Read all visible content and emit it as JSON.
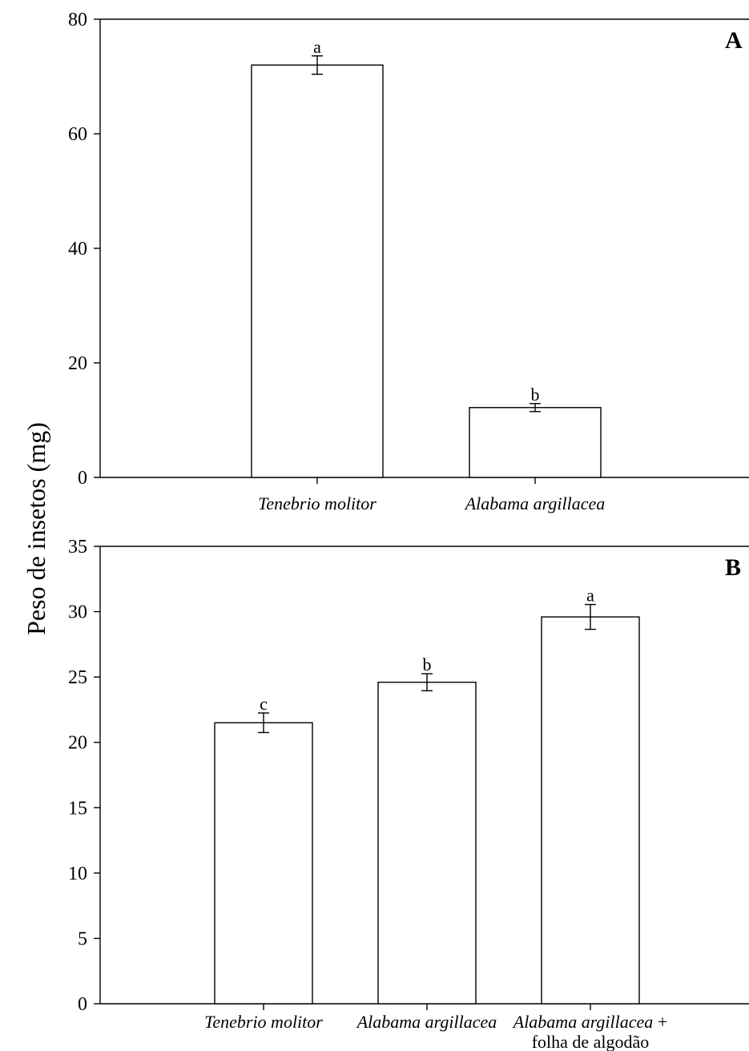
{
  "chart_data": [
    {
      "type": "bar",
      "panel_label": "A",
      "categories": [
        {
          "parts": [
            {
              "text": "Tenebrio molitor",
              "italic": true
            }
          ]
        },
        {
          "parts": [
            {
              "text": "Alabama argillacea",
              "italic": true
            }
          ]
        }
      ],
      "values": [
        72,
        12.2
      ],
      "errors": [
        1.6,
        0.7
      ],
      "significance": [
        "a",
        "b"
      ],
      "ylim": [
        0,
        80
      ],
      "yticks": [
        0,
        20,
        40,
        60,
        80
      ],
      "ylabel": "Peso de insetos (mg)",
      "grid": false,
      "bar_color": "#ffffff",
      "edge_color": "#000000"
    },
    {
      "type": "bar",
      "panel_label": "B",
      "categories": [
        {
          "parts": [
            {
              "text": "Tenebrio molitor",
              "italic": true
            }
          ]
        },
        {
          "parts": [
            {
              "text": "Alabama argillacea",
              "italic": true
            }
          ]
        },
        {
          "parts": [
            {
              "text": "Alabama argillacea",
              "italic": true
            },
            {
              "text": " +",
              "italic": false
            }
          ],
          "line2": "folha de algodão"
        }
      ],
      "values": [
        21.5,
        24.6,
        29.6
      ],
      "errors": [
        0.75,
        0.65,
        0.95
      ],
      "significance": [
        "c",
        "b",
        "a"
      ],
      "ylim": [
        0,
        35
      ],
      "yticks": [
        0,
        5,
        10,
        15,
        20,
        25,
        30,
        35
      ],
      "grid": false,
      "bar_color": "#ffffff",
      "edge_color": "#000000"
    }
  ],
  "y_title": "Peso de insetos (mg)"
}
